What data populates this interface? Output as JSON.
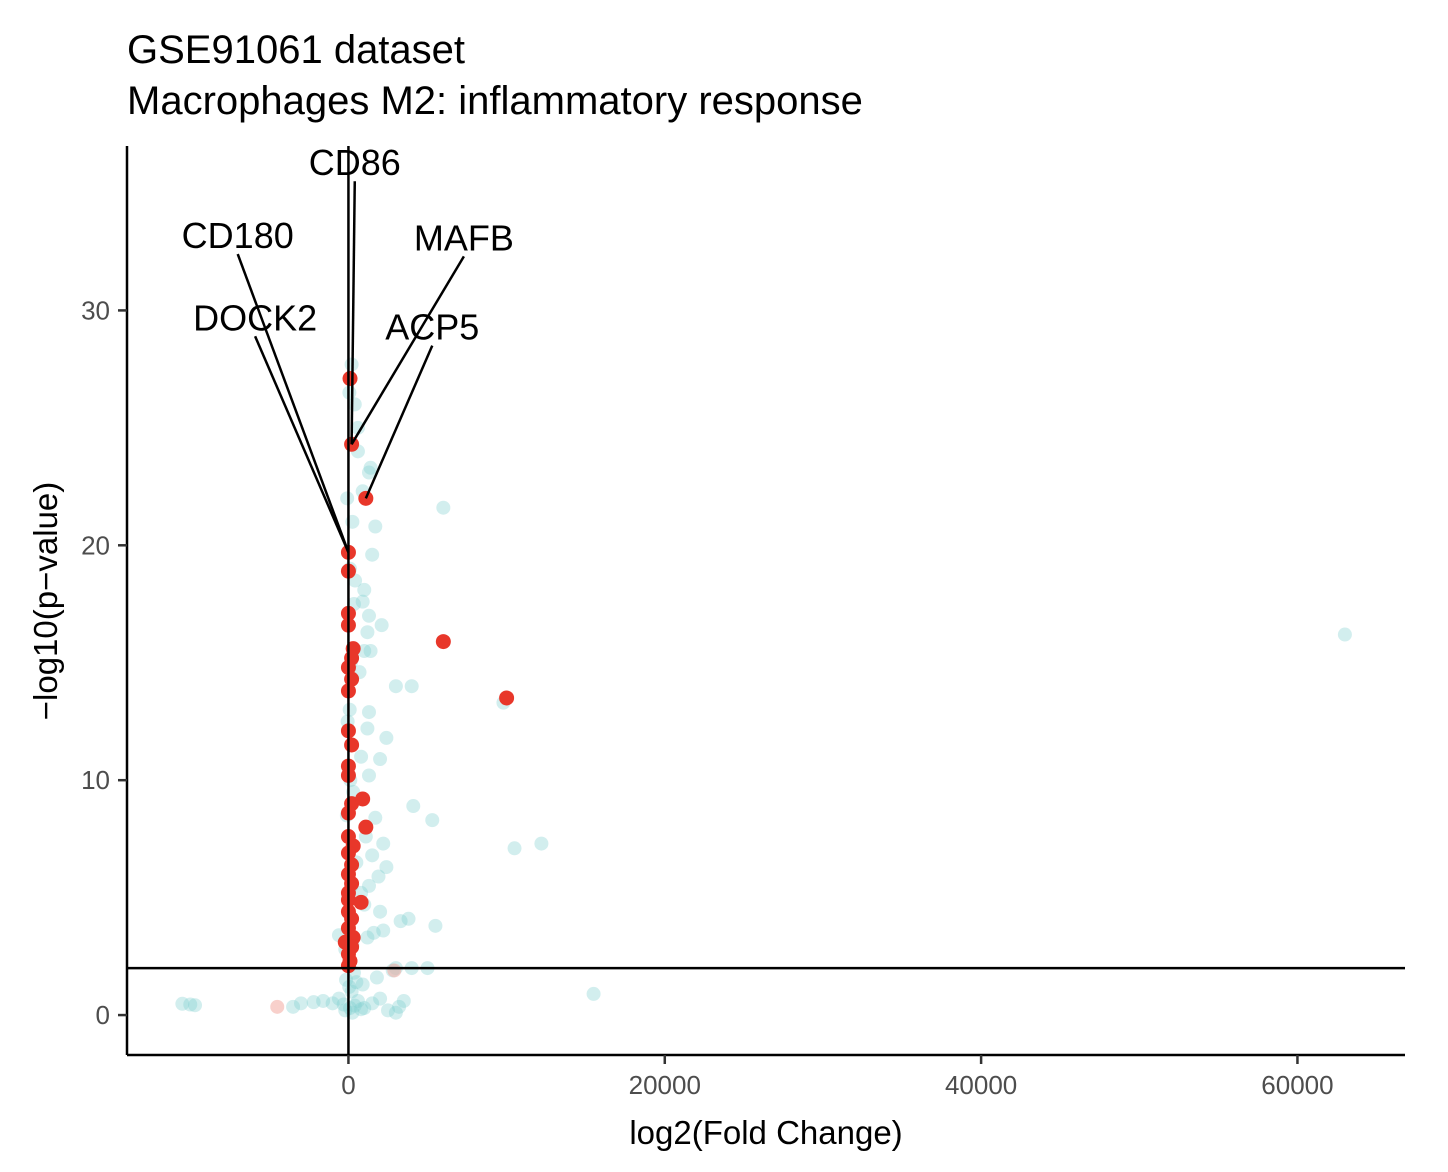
{
  "chart_data": {
    "type": "scatter",
    "title": "GSE91061 dataset",
    "subtitle": "Macrophages M2: inflammatory response",
    "xlabel": "log2(Fold Change)",
    "ylabel": "−log10(p−value)",
    "xlim": [
      -14000,
      66800
    ],
    "ylim": [
      -1.7,
      37
    ],
    "x_ticks": [
      0,
      20000,
      40000,
      60000
    ],
    "y_ticks": [
      0,
      10,
      20,
      30
    ],
    "x_tick_labels": [
      "0",
      "20000",
      "40000",
      "60000"
    ],
    "y_tick_labels": [
      "0",
      "10",
      "20",
      "30"
    ],
    "hline": 2,
    "vline": 0,
    "grid": false,
    "legend": "none",
    "colors": {
      "background_points": "#7fcdcd",
      "highlight_points": "#e8372a",
      "faint_highlight_points": "#f4b0a8",
      "reference_lines": "#000000"
    },
    "series": [
      {
        "points": [
          [
            -10000,
            0.45
          ],
          [
            -10500,
            0.48
          ],
          [
            -9700,
            0.42
          ],
          [
            -3500,
            0.35
          ],
          [
            -3000,
            0.5
          ],
          [
            -2200,
            0.55
          ],
          [
            -1600,
            0.6
          ],
          [
            -1000,
            0.5
          ],
          [
            -600,
            0.7
          ],
          [
            -300,
            0.45
          ],
          [
            -200,
            0.2
          ],
          [
            100,
            0.3
          ],
          [
            250,
            0.1
          ],
          [
            400,
            0.4
          ],
          [
            600,
            0.6
          ],
          [
            800,
            0.25
          ],
          [
            1000,
            0.3
          ],
          [
            1500,
            0.5
          ],
          [
            2000,
            0.7
          ],
          [
            2500,
            0.2
          ],
          [
            3000,
            0.1
          ],
          [
            3500,
            0.6
          ],
          [
            3200,
            0.35
          ],
          [
            15500,
            0.9
          ],
          [
            -150,
            1.5
          ],
          [
            50,
            1.2
          ],
          [
            200,
            1.0
          ],
          [
            350,
            1.8
          ],
          [
            500,
            1.4
          ],
          [
            900,
            1.3
          ],
          [
            1800,
            1.6
          ],
          [
            2800,
            1.9
          ],
          [
            3000,
            2.0
          ],
          [
            4000,
            2.0
          ],
          [
            5000,
            2.0
          ],
          [
            -600,
            3.4
          ],
          [
            -200,
            2.8
          ],
          [
            1200,
            3.3
          ],
          [
            1600,
            3.5
          ],
          [
            2200,
            3.6
          ],
          [
            3300,
            4.0
          ],
          [
            3800,
            4.1
          ],
          [
            5500,
            3.8
          ],
          [
            2000,
            4.4
          ],
          [
            1000,
            4.7
          ],
          [
            800,
            5.2
          ],
          [
            1300,
            5.5
          ],
          [
            1900,
            5.9
          ],
          [
            2400,
            6.3
          ],
          [
            1500,
            6.8
          ],
          [
            2200,
            7.3
          ],
          [
            1100,
            7.6
          ],
          [
            1700,
            8.4
          ],
          [
            4100,
            8.9
          ],
          [
            5300,
            8.3
          ],
          [
            10500,
            7.1
          ],
          [
            12200,
            7.3
          ],
          [
            1300,
            10.2
          ],
          [
            2000,
            10.9
          ],
          [
            2400,
            11.8
          ],
          [
            1200,
            12.2
          ],
          [
            800,
            11.0
          ],
          [
            1300,
            12.9
          ],
          [
            3000,
            14.0
          ],
          [
            4000,
            14.0
          ],
          [
            700,
            14.6
          ],
          [
            1000,
            15.5
          ],
          [
            1400,
            15.5
          ],
          [
            1200,
            16.3
          ],
          [
            2100,
            16.6
          ],
          [
            1300,
            17.0
          ],
          [
            900,
            17.6
          ],
          [
            1000,
            18.1
          ],
          [
            1500,
            19.6
          ],
          [
            1700,
            20.8
          ],
          [
            6000,
            21.6
          ],
          [
            900,
            22.3
          ],
          [
            1300,
            23.1
          ],
          [
            1400,
            23.3
          ],
          [
            600,
            25.0
          ],
          [
            400,
            26.0
          ],
          [
            200,
            27.7
          ],
          [
            9800,
            13.3
          ],
          [
            63000,
            16.2
          ],
          [
            100,
            19.0
          ],
          [
            250,
            21.0
          ],
          [
            150,
            15.0
          ],
          [
            300,
            9.5
          ],
          [
            -100,
            8.5
          ],
          [
            500,
            6.5
          ],
          [
            -50,
            12.5
          ],
          [
            350,
            17.5
          ],
          [
            600,
            24.0
          ],
          [
            120,
            10.0
          ],
          [
            80,
            13.0
          ],
          [
            180,
            5.5
          ],
          [
            420,
            18.5
          ],
          [
            -80,
            22.0
          ],
          [
            60,
            26.5
          ],
          [
            250,
            3.0
          ]
        ]
      },
      {
        "points": [
          [
            100,
            27.1
          ],
          [
            200,
            24.3
          ],
          [
            1100,
            22.0
          ],
          [
            6000,
            15.9
          ],
          [
            10000,
            13.5
          ],
          [
            0,
            19.7
          ],
          [
            0,
            18.9
          ],
          [
            0,
            17.1
          ],
          [
            0,
            16.6
          ],
          [
            300,
            15.6
          ],
          [
            200,
            15.2
          ],
          [
            0,
            14.8
          ],
          [
            200,
            14.3
          ],
          [
            0,
            13.8
          ],
          [
            0,
            12.1
          ],
          [
            200,
            11.5
          ],
          [
            0,
            10.6
          ],
          [
            0,
            10.2
          ],
          [
            200,
            9.0
          ],
          [
            900,
            9.2
          ],
          [
            0,
            8.6
          ],
          [
            1100,
            8.0
          ],
          [
            0,
            7.6
          ],
          [
            300,
            7.2
          ],
          [
            0,
            6.9
          ],
          [
            200,
            6.4
          ],
          [
            0,
            6.0
          ],
          [
            200,
            5.6
          ],
          [
            0,
            5.2
          ],
          [
            0,
            4.9
          ],
          [
            800,
            4.8
          ],
          [
            0,
            4.4
          ],
          [
            200,
            4.1
          ],
          [
            0,
            3.7
          ],
          [
            300,
            3.3
          ],
          [
            -200,
            3.1
          ],
          [
            200,
            2.9
          ],
          [
            0,
            2.6
          ],
          [
            100,
            2.3
          ],
          [
            0,
            2.1
          ]
        ]
      },
      {
        "points": [
          [
            -4500,
            0.35
          ],
          [
            2900,
            1.9
          ]
        ]
      }
    ],
    "annotations": [
      {
        "label": "CD86",
        "point": [
          200,
          24.3
        ],
        "text_at": [
          400,
          35.5
        ]
      },
      {
        "label": "CD180",
        "point": [
          0,
          19.7
        ],
        "text_at": [
          -7000,
          32.4
        ]
      },
      {
        "label": "MAFB",
        "point": [
          200,
          24.3
        ],
        "text_at": [
          7300,
          32.3
        ]
      },
      {
        "label": "DOCK2",
        "point": [
          0,
          19.7
        ],
        "text_at": [
          -5900,
          28.9
        ]
      },
      {
        "label": "ACP5",
        "point": [
          1100,
          22.0
        ],
        "text_at": [
          5300,
          28.5
        ]
      }
    ]
  }
}
